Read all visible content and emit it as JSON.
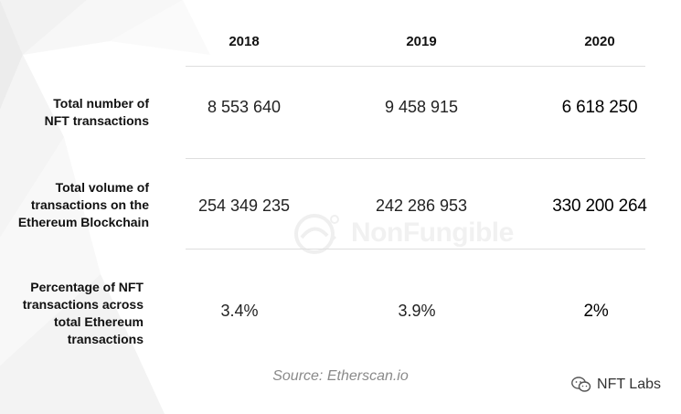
{
  "chart_data": {
    "type": "table",
    "columns": [
      "2018",
      "2019",
      "2020"
    ],
    "rows": [
      {
        "label": "Total number of NFT transactions",
        "label_lines": [
          "Total number of",
          "NFT transactions"
        ],
        "values": [
          "8 553 640",
          "9 458 915",
          "6 618 250"
        ]
      },
      {
        "label": "Total volume of transactions on the Ethereum Blockchain",
        "label_lines": [
          "Total volume of",
          "transactions on the",
          "Ethereum Blockchain"
        ],
        "values": [
          "254 349 235",
          "242 286 953",
          "330 200 264"
        ]
      },
      {
        "label": "Percentage of NFT transactions across total Ethereum transactions",
        "label_lines": [
          "Percentage of NFT",
          "transactions across",
          "total Ethereum",
          "transactions"
        ],
        "values": [
          "3.4%",
          "3.9%",
          "2%"
        ]
      }
    ],
    "source": "Source: Etherscan.io"
  },
  "watermark": {
    "text": "NonFungible",
    "icon": "nonfungible-logo-icon"
  },
  "brand": {
    "text": "NFT Labs",
    "icon": "wechat-icon"
  },
  "colors": {
    "text": "#111111",
    "rule": "#dedede",
    "source": "#8a8a8a",
    "watermark": "#e6e6e6"
  }
}
